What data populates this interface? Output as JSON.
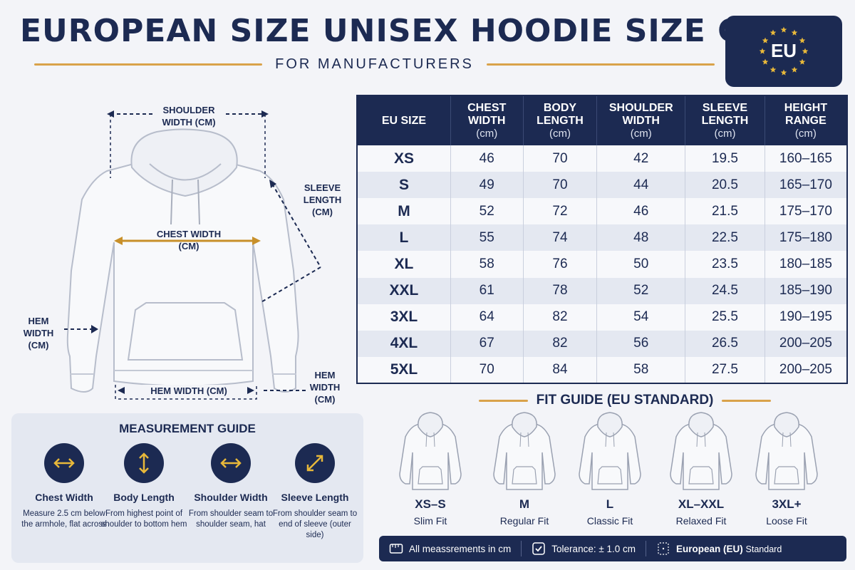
{
  "title": "EUROPEAN SIZE UNISEX HOODIE SIZE CHART",
  "subtitle": "FOR MANUFACTURERS",
  "badge": {
    "text": "EU"
  },
  "colors": {
    "navy": "#1c2a52",
    "gold": "#d9a24a",
    "background": "#f3f4f8",
    "row_alt": "#e4e8f1"
  },
  "illustration": {
    "shoulder_width": "SHOULDER WIDTH (CM)",
    "sleeve_length": "SLEEVE LENGTH (CM)",
    "chest_width": "CHEST WIDTH (CM)",
    "hem_width_left": "HEM WIDTH (CM)",
    "hem_width_bottom": "HEM WIDTH (CM)",
    "hem_width_right": "HEM WIDTH (CM)"
  },
  "table": {
    "headers": [
      {
        "label": "EU SIZE",
        "unit": ""
      },
      {
        "label": "CHEST WIDTH",
        "unit": "(cm)"
      },
      {
        "label": "BODY LENGTH",
        "unit": "(cm)"
      },
      {
        "label": "SHOULDER WIDTH",
        "unit": "(cm)"
      },
      {
        "label": "SLEEVE LENGTH",
        "unit": "(cm)"
      },
      {
        "label": "HEIGHT RANGE",
        "unit": "(cm)"
      }
    ],
    "rows": [
      [
        "XS",
        "46",
        "70",
        "42",
        "19.5",
        "160–165"
      ],
      [
        "S",
        "49",
        "70",
        "44",
        "20.5",
        "165–170"
      ],
      [
        "M",
        "52",
        "72",
        "46",
        "21.5",
        "175–170"
      ],
      [
        "L",
        "55",
        "74",
        "48",
        "22.5",
        "175–180"
      ],
      [
        "XL",
        "58",
        "76",
        "50",
        "23.5",
        "180–185"
      ],
      [
        "XXL",
        "61",
        "78",
        "52",
        "24.5",
        "185–190"
      ],
      [
        "3XL",
        "64",
        "82",
        "54",
        "25.5",
        "190–195"
      ],
      [
        "4XL",
        "67",
        "82",
        "56",
        "26.5",
        "200–205"
      ],
      [
        "5XL",
        "70",
        "84",
        "58",
        "27.5",
        "200–205"
      ]
    ]
  },
  "fit_guide": {
    "title": "FIT GUIDE  (EU STANDARD)",
    "items": [
      {
        "size": "XS–S",
        "label": "Slim Fit"
      },
      {
        "size": "M",
        "label": "Regular Fit"
      },
      {
        "size": "L",
        "label": "Classic Fit"
      },
      {
        "size": "XL–XXL",
        "label": "Relaxed Fit"
      },
      {
        "size": "3XL+",
        "label": "Loose Fit"
      }
    ]
  },
  "measurement_guide": {
    "title": "MEASUREMENT GUIDE",
    "items": [
      {
        "icon": "horizontal-arrow-icon",
        "name": "Chest Width",
        "desc": "Measure 2.5 cm below the armhole, flat across"
      },
      {
        "icon": "vertical-arrow-icon",
        "name": "Body Length",
        "desc": "From highest point of shoulder to bottom hem"
      },
      {
        "icon": "horizontal-arrow-icon",
        "name": "Shoulder Width",
        "desc": "From shoulder seam to shoulder seam, hat"
      },
      {
        "icon": "diagonal-arrow-icon",
        "name": "Sleeve Length",
        "desc": "From shoulder seam to end of sleeve (outer side)"
      }
    ]
  },
  "footer": {
    "measurements": "All meassrements in cm",
    "tolerance": "Tolerance: ± 1.0 cm",
    "standard_bold": "European (EU)",
    "standard_rest": "Standard"
  }
}
